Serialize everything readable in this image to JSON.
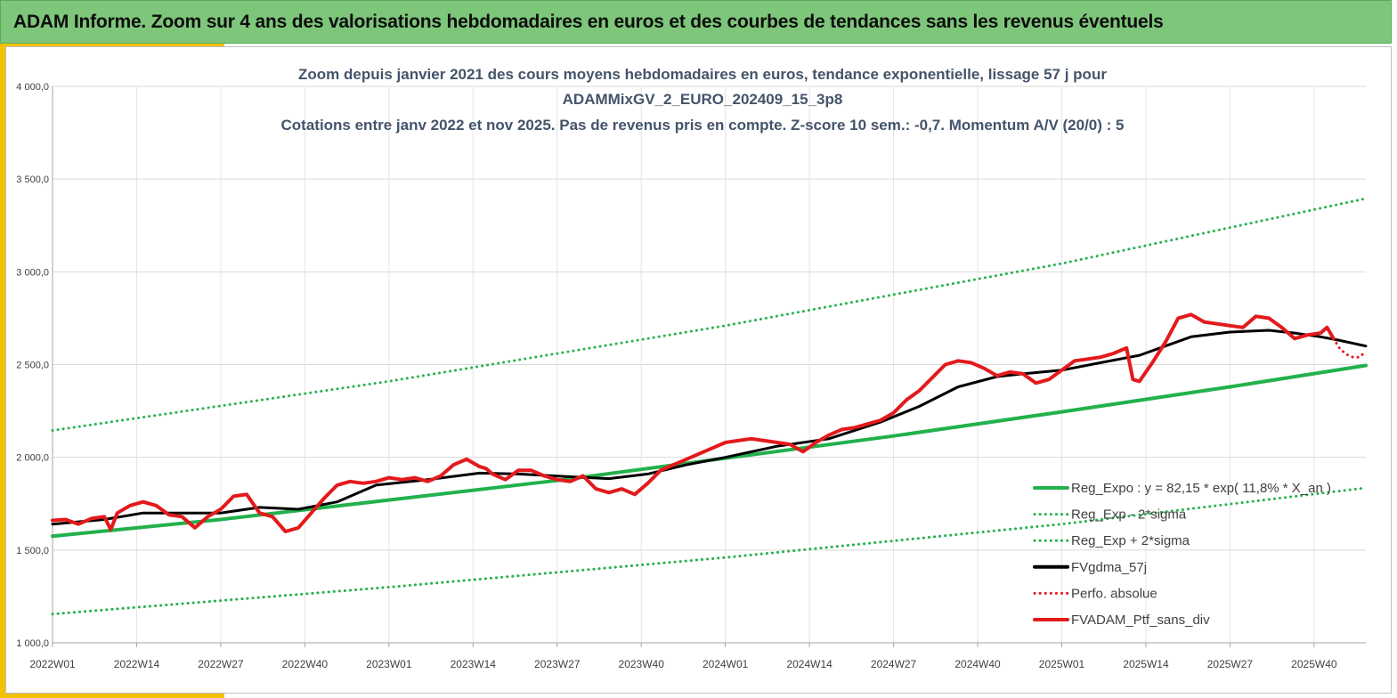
{
  "banner": {
    "title": "ADAM Informe. Zoom sur 4 ans des valorisations hebdomadaires en euros et des courbes de tendances sans les revenus éventuels"
  },
  "chart_data": {
    "type": "line",
    "title_lines": [
      "Zoom depuis janvier 2021 des cours moyens hebdomadaires  en euros, tendance exponentielle, lissage 57 j pour",
      "ADAMMixGV_2_EURO_202409_15_3p8",
      "Cotations  entre janv 2022 et nov 2025. Pas de revenus pris en compte. Z-score 10 sem.: -0,7. Momentum A/V (20/0) : 5"
    ],
    "ylim": [
      1000,
      4000
    ],
    "y_ticks": [
      1000,
      1500,
      2000,
      2500,
      3000,
      3500,
      4000
    ],
    "y_tick_labels": [
      "1 000,0",
      "1 500,0",
      "2 000,0",
      "2 500,0",
      "3 000,0",
      "3 500,0",
      "4 000,0"
    ],
    "x_range": [
      0,
      203
    ],
    "x_ticks": [
      0,
      13,
      26,
      39,
      52,
      65,
      78,
      91,
      104,
      117,
      130,
      143,
      156,
      169,
      182,
      195
    ],
    "x_tick_labels": [
      "2022W01",
      "2022W14",
      "2022W27",
      "2022W40",
      "2023W01",
      "2023W14",
      "2023W27",
      "2023W40",
      "2024W01",
      "2024W14",
      "2024W27",
      "2024W40",
      "2025W01",
      "2025W14",
      "2025W27",
      "2025W40"
    ],
    "grid": true,
    "legend_position": "bottom-right",
    "series": [
      {
        "name": "Reg_Expo : y = 82,15 * exp( 11,8% *  X_an )",
        "color": "#22b14c",
        "style": "solid",
        "x": [
          0,
          26,
          52,
          78,
          104,
          130,
          156,
          182,
          203
        ],
        "values": [
          1575,
          1665,
          1770,
          1875,
          1995,
          2115,
          2245,
          2380,
          2495
        ]
      },
      {
        "name": "Reg_Exp - 2*sigma",
        "color": "#22b14c",
        "style": "dotted",
        "x": [
          0,
          52,
          104,
          156,
          203
        ],
        "values": [
          1155,
          1300,
          1460,
          1640,
          1835
        ]
      },
      {
        "name": "Reg_Exp + 2*sigma",
        "color": "#22b14c",
        "style": "dotted",
        "x": [
          0,
          52,
          104,
          156,
          203
        ],
        "values": [
          2145,
          2410,
          2710,
          3045,
          3395
        ]
      },
      {
        "name": "FVgdma_57j",
        "color": "#000000",
        "style": "solid",
        "x": [
          0,
          8,
          14,
          20,
          26,
          32,
          38,
          44,
          50,
          58,
          66,
          72,
          80,
          86,
          92,
          98,
          104,
          112,
          120,
          128,
          134,
          140,
          146,
          150,
          156,
          162,
          168,
          172,
          176,
          182,
          188,
          192,
          196,
          199,
          203
        ],
        "values": [
          1640,
          1665,
          1700,
          1700,
          1700,
          1730,
          1720,
          1760,
          1850,
          1880,
          1915,
          1910,
          1895,
          1885,
          1910,
          1960,
          2000,
          2060,
          2100,
          2190,
          2275,
          2380,
          2435,
          2450,
          2470,
          2510,
          2550,
          2600,
          2650,
          2675,
          2685,
          2670,
          2650,
          2630,
          2600
        ]
      },
      {
        "name": "Perfo. absolue",
        "color": "#e31a1c",
        "style": "dotted",
        "x": [
          198,
          199,
          200,
          201,
          202,
          203
        ],
        "values": [
          2640,
          2585,
          2555,
          2540,
          2540,
          2570
        ]
      },
      {
        "name": "FVADAM_Ptf_sans_div",
        "color": "#e31a1c",
        "style": "solid",
        "x": [
          0,
          2,
          4,
          6,
          8,
          9,
          10,
          12,
          14,
          16,
          18,
          20,
          22,
          24,
          26,
          28,
          30,
          32,
          34,
          36,
          38,
          40,
          42,
          44,
          46,
          48,
          50,
          52,
          54,
          56,
          58,
          60,
          62,
          64,
          66,
          67,
          68,
          70,
          72,
          74,
          76,
          78,
          80,
          82,
          84,
          86,
          88,
          90,
          92,
          94,
          96,
          98,
          100,
          102,
          104,
          106,
          108,
          110,
          112,
          114,
          116,
          118,
          120,
          122,
          124,
          126,
          128,
          130,
          132,
          134,
          136,
          138,
          140,
          142,
          144,
          146,
          148,
          150,
          152,
          154,
          156,
          158,
          160,
          162,
          164,
          166,
          167,
          168,
          170,
          172,
          174,
          176,
          178,
          180,
          182,
          184,
          186,
          188,
          190,
          192,
          194,
          196,
          197,
          198
        ],
        "values": [
          1660,
          1665,
          1640,
          1670,
          1680,
          1610,
          1700,
          1740,
          1760,
          1740,
          1690,
          1680,
          1620,
          1680,
          1720,
          1790,
          1800,
          1700,
          1680,
          1600,
          1620,
          1700,
          1780,
          1850,
          1870,
          1860,
          1870,
          1890,
          1880,
          1890,
          1870,
          1900,
          1960,
          1990,
          1950,
          1940,
          1910,
          1880,
          1930,
          1930,
          1900,
          1880,
          1870,
          1900,
          1830,
          1810,
          1830,
          1800,
          1860,
          1930,
          1960,
          1990,
          2020,
          2050,
          2080,
          2090,
          2100,
          2090,
          2080,
          2070,
          2030,
          2080,
          2120,
          2150,
          2160,
          2180,
          2200,
          2240,
          2310,
          2360,
          2430,
          2500,
          2520,
          2510,
          2480,
          2440,
          2460,
          2450,
          2400,
          2420,
          2470,
          2520,
          2530,
          2540,
          2560,
          2590,
          2420,
          2410,
          2510,
          2620,
          2750,
          2770,
          2730,
          2720,
          2710,
          2700,
          2760,
          2750,
          2700,
          2640,
          2660,
          2670,
          2700,
          2640
        ]
      }
    ]
  }
}
